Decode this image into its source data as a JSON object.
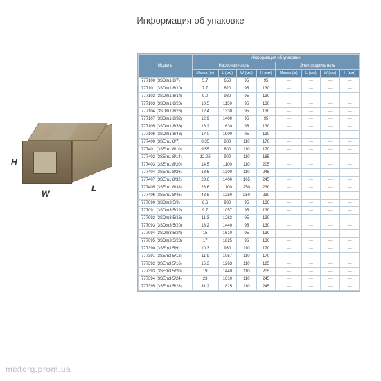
{
  "title": "Информация об упаковке",
  "watermark": "mixtorg.prom.ua",
  "dims": {
    "h": "H",
    "w": "W",
    "l": "L"
  },
  "table": {
    "header_top": "Информация об упаковке",
    "model_label": "Модель",
    "group_pump": "Насосная часть",
    "group_motor": "Электродвигатель",
    "cols": {
      "mass": "Масса (кг)",
      "l": "L (мм)",
      "w": "W (мм)",
      "h": "H (мм)",
      "mass2": "Масса (кг)",
      "l2": "L (мм)",
      "w2": "W (мм)",
      "h2": "H (мм)"
    },
    "rows": [
      {
        "m": "777100 (3SDm1.8/7)",
        "mass": "5.7",
        "l": "650",
        "w": "95",
        "h": "95"
      },
      {
        "m": "777101 (3SDm1.8/10)",
        "mass": "7.7",
        "l": "820",
        "w": "95",
        "h": "130"
      },
      {
        "m": "777102 (3SDm1.8/14)",
        "mass": "9.0",
        "l": "930",
        "w": "95",
        "h": "130"
      },
      {
        "m": "777103 (3SDm1.8/20)",
        "mass": "10.5",
        "l": "1130",
        "w": "95",
        "h": "130"
      },
      {
        "m": "777104 (3SDm1.8/26)",
        "mass": "12.4",
        "l": "1330",
        "w": "95",
        "h": "130"
      },
      {
        "m": "777107 (3SDm1.8/32)",
        "mass": "12.9",
        "l": "1400",
        "w": "95",
        "h": "95"
      },
      {
        "m": "777105 (3SDm1.8/38)",
        "mass": "16.2",
        "l": "1630",
        "w": "95",
        "h": "130"
      },
      {
        "m": "777106 (3SDm1.8/46)",
        "mass": "17.0",
        "l": "1900",
        "w": "95",
        "h": "130"
      },
      {
        "m": "777400 (3SEm1.8/7)",
        "mass": "8.35",
        "l": "800",
        "w": "110",
        "h": "170"
      },
      {
        "m": "777401 (3SEm1.8/10)",
        "mass": "9.55",
        "l": "800",
        "w": "110",
        "h": "170"
      },
      {
        "m": "777402 (3SEm1.8/14)",
        "mass": "12.05",
        "l": "900",
        "w": "110",
        "h": "185"
      },
      {
        "m": "777403 (3SEm1.8/20)",
        "mass": "14.5",
        "l": "1100",
        "w": "110",
        "h": "205"
      },
      {
        "m": "777404 (3SEm1.8/26)",
        "mass": "18.6",
        "l": "1300",
        "w": "110",
        "h": "245"
      },
      {
        "m": "777407 (3SEm1.8/32)",
        "mass": "23.6",
        "l": "1400",
        "w": "165",
        "h": "245"
      },
      {
        "m": "777405 (3SEm1.8/38)",
        "mass": "28.6",
        "l": "1100",
        "w": "250",
        "h": "230"
      },
      {
        "m": "777406 (3SEm1.8/46)",
        "mass": "43.8",
        "l": "1250",
        "w": "250",
        "h": "230"
      },
      {
        "m": "777090 (3SDm3.5/9)",
        "mass": "8.6",
        "l": "930",
        "w": "95",
        "h": "130"
      },
      {
        "m": "777091 (3SDm3.5/12)",
        "mass": "9.7",
        "l": "1057",
        "w": "95",
        "h": "130"
      },
      {
        "m": "777092 (3SDm3.5/16)",
        "mass": "11.3",
        "l": "1263",
        "w": "95",
        "h": "130"
      },
      {
        "m": "777093 (3SDm3.5/20)",
        "mass": "13.2",
        "l": "1440",
        "w": "95",
        "h": "130"
      },
      {
        "m": "777094 (3SDm3.5/24)",
        "mass": "15",
        "l": "1610",
        "w": "95",
        "h": "130"
      },
      {
        "m": "777095 (3SDm3.5/28)",
        "mass": "17",
        "l": "1825",
        "w": "95",
        "h": "130"
      },
      {
        "m": "777390 (3SEm3.5/9)",
        "mass": "10.3",
        "l": "930",
        "w": "110",
        "h": "170"
      },
      {
        "m": "777391 (3SEm3.5/12)",
        "mass": "11.9",
        "l": "1057",
        "w": "110",
        "h": "170"
      },
      {
        "m": "777392 (3SEm3.5/16)",
        "mass": "15.3",
        "l": "1263",
        "w": "110",
        "h": "185"
      },
      {
        "m": "777393 (3SEm3.5/20)",
        "mass": "19",
        "l": "1440",
        "w": "110",
        "h": "205"
      },
      {
        "m": "777394 (3SEm3.5/24)",
        "mass": "23",
        "l": "1610",
        "w": "110",
        "h": "245"
      },
      {
        "m": "777395 (3SEm3.5/28)",
        "mass": "31.2",
        "l": "1825",
        "w": "110",
        "h": "245"
      }
    ]
  },
  "colors": {
    "header_bg": "#6e95b5",
    "subheader_bg": "#5c86a8",
    "border": "#bfcdd9"
  }
}
